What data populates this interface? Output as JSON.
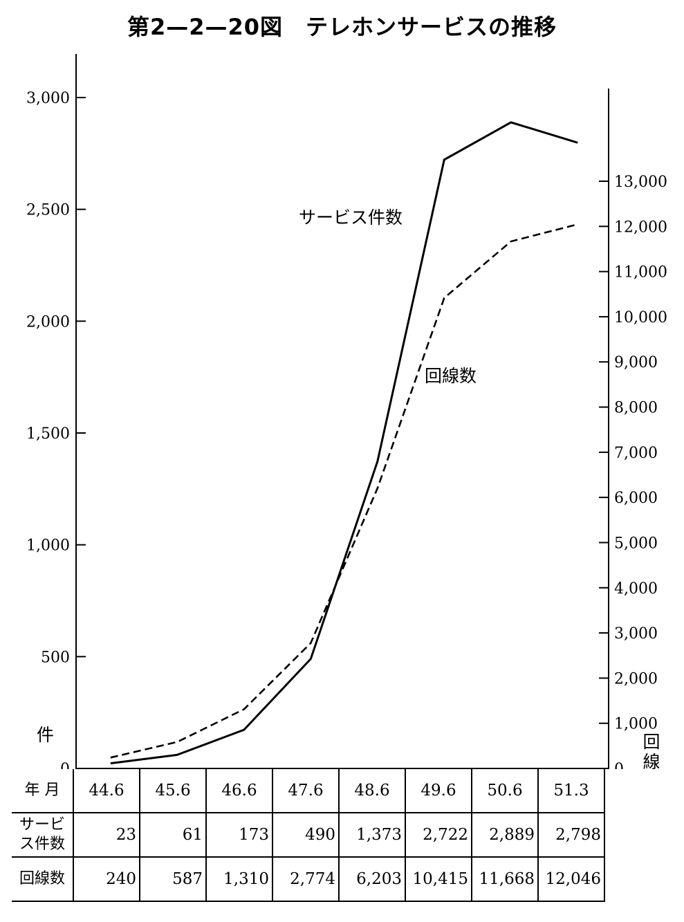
{
  "title": "第2—2—20図　テレホンサービスの推移",
  "chart_data": {
    "type": "line",
    "categories": [
      "44.6",
      "45.6",
      "46.6",
      "47.6",
      "48.6",
      "49.6",
      "50.6",
      "51.3"
    ],
    "series": [
      {
        "name": "サービス件数",
        "axis": "left",
        "style": "solid",
        "values": [
          23,
          61,
          173,
          490,
          1373,
          2722,
          2889,
          2798
        ]
      },
      {
        "name": "回線数",
        "axis": "right",
        "style": "dashed",
        "values": [
          240,
          587,
          1310,
          2774,
          6203,
          10415,
          11668,
          12046
        ]
      }
    ],
    "left_axis": {
      "label": "件",
      "ylim": [
        0,
        3000
      ],
      "ticks": [
        0,
        500,
        1000,
        1500,
        2000,
        2500,
        3000
      ],
      "tick_labels": [
        "0",
        "500",
        "1,000",
        "1,500",
        "2,000",
        "2,500",
        "3,000"
      ]
    },
    "right_axis": {
      "label": "回線",
      "ylim": [
        0,
        13000
      ],
      "ticks": [
        0,
        1000,
        2000,
        3000,
        4000,
        5000,
        6000,
        7000,
        8000,
        9000,
        10000,
        11000,
        12000,
        13000
      ],
      "tick_labels": [
        "0",
        "1,000",
        "2,000",
        "3,000",
        "4,000",
        "5,000",
        "6,000",
        "7,000",
        "8,000",
        "9,000",
        "10,000",
        "11,000",
        "12,000",
        "13,000"
      ]
    },
    "grid": false
  },
  "table": {
    "header_label": "年 月",
    "rows": [
      {
        "label": "サービ\nス件数",
        "values": [
          "23",
          "61",
          "173",
          "490",
          "1,373",
          "2,722",
          "2,889",
          "2,798"
        ]
      },
      {
        "label": "回線数",
        "values": [
          "240",
          "587",
          "1,310",
          "2,774",
          "6,203",
          "10,415",
          "11,668",
          "12,046"
        ]
      }
    ]
  }
}
